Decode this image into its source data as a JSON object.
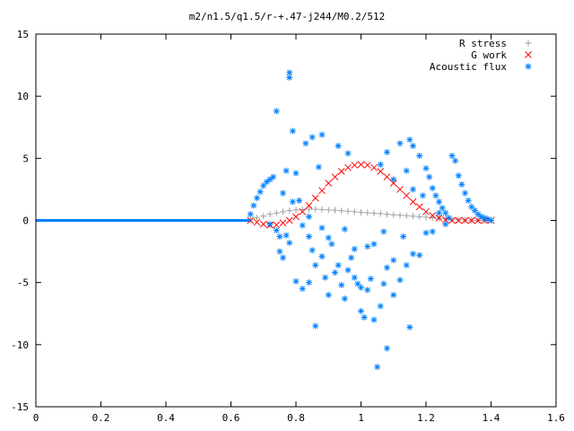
{
  "chart_data": {
    "type": "scatter",
    "title": "m2/n1.5/q1.5/r-+.47-j244/M0.2/512",
    "xlabel": "",
    "ylabel": "",
    "xlim": [
      0,
      1.6
    ],
    "ylim": [
      -15,
      15
    ],
    "x_ticks": [
      "0",
      "0.2",
      "0.4",
      "0.6",
      "0.8",
      "1",
      "1.2",
      "1.4",
      "1.6"
    ],
    "y_ticks": [
      "15",
      "10",
      "5",
      "0",
      "-5",
      "-10",
      "-15"
    ],
    "legend_position": "top-right",
    "series": [
      {
        "name": "R stress",
        "marker": "plus",
        "color": "#a0a0a0",
        "points": [
          [
            0.66,
            0.05
          ],
          [
            0.68,
            0.2
          ],
          [
            0.7,
            0.35
          ],
          [
            0.72,
            0.5
          ],
          [
            0.74,
            0.6
          ],
          [
            0.76,
            0.7
          ],
          [
            0.78,
            0.78
          ],
          [
            0.8,
            0.84
          ],
          [
            0.82,
            0.88
          ],
          [
            0.84,
            0.9
          ],
          [
            0.86,
            0.9
          ],
          [
            0.88,
            0.88
          ],
          [
            0.9,
            0.85
          ],
          [
            0.92,
            0.82
          ],
          [
            0.94,
            0.78
          ],
          [
            0.96,
            0.74
          ],
          [
            0.98,
            0.7
          ],
          [
            1.0,
            0.66
          ],
          [
            1.02,
            0.62
          ],
          [
            1.04,
            0.58
          ],
          [
            1.06,
            0.54
          ],
          [
            1.08,
            0.5
          ],
          [
            1.1,
            0.46
          ],
          [
            1.12,
            0.42
          ],
          [
            1.14,
            0.38
          ],
          [
            1.16,
            0.34
          ],
          [
            1.18,
            0.3
          ],
          [
            1.2,
            0.26
          ],
          [
            1.22,
            0.22
          ],
          [
            1.24,
            0.18
          ],
          [
            1.26,
            0.14
          ],
          [
            1.28,
            0.1
          ],
          [
            1.3,
            0.06
          ],
          [
            1.32,
            0.03
          ],
          [
            1.34,
            0.01
          ],
          [
            1.36,
            0.0
          ],
          [
            1.38,
            0.0
          ],
          [
            1.4,
            0.0
          ]
        ]
      },
      {
        "name": "G work",
        "marker": "cross",
        "color": "#ff0000",
        "points": [
          [
            0.66,
            0.0
          ],
          [
            0.68,
            -0.15
          ],
          [
            0.7,
            -0.3
          ],
          [
            0.72,
            -0.38
          ],
          [
            0.74,
            -0.35
          ],
          [
            0.76,
            -0.2
          ],
          [
            0.78,
            0.0
          ],
          [
            0.8,
            0.3
          ],
          [
            0.82,
            0.7
          ],
          [
            0.84,
            1.2
          ],
          [
            0.86,
            1.8
          ],
          [
            0.88,
            2.4
          ],
          [
            0.9,
            3.0
          ],
          [
            0.92,
            3.5
          ],
          [
            0.94,
            3.95
          ],
          [
            0.96,
            4.25
          ],
          [
            0.98,
            4.45
          ],
          [
            1.0,
            4.5
          ],
          [
            1.02,
            4.45
          ],
          [
            1.04,
            4.25
          ],
          [
            1.06,
            3.95
          ],
          [
            1.08,
            3.5
          ],
          [
            1.1,
            3.0
          ],
          [
            1.12,
            2.5
          ],
          [
            1.14,
            2.0
          ],
          [
            1.16,
            1.5
          ],
          [
            1.18,
            1.1
          ],
          [
            1.2,
            0.7
          ],
          [
            1.22,
            0.4
          ],
          [
            1.24,
            0.2
          ],
          [
            1.26,
            0.05
          ],
          [
            1.28,
            0.0
          ],
          [
            1.3,
            0.0
          ],
          [
            1.32,
            0.0
          ],
          [
            1.34,
            0.0
          ],
          [
            1.36,
            0.0
          ],
          [
            1.38,
            0.0
          ],
          [
            1.4,
            0.0
          ]
        ]
      },
      {
        "name": "Acoustic flux",
        "marker": "star",
        "color": "#0080ff",
        "points": [
          [
            0.66,
            0.5
          ],
          [
            0.67,
            1.2
          ],
          [
            0.68,
            1.8
          ],
          [
            0.69,
            2.3
          ],
          [
            0.7,
            2.8
          ],
          [
            0.71,
            3.1
          ],
          [
            0.72,
            3.3
          ],
          [
            0.73,
            3.5
          ],
          [
            0.72,
            -0.3
          ],
          [
            0.74,
            -0.8
          ],
          [
            0.75,
            -2.5
          ],
          [
            0.76,
            -3.0
          ],
          [
            0.77,
            -1.2
          ],
          [
            0.78,
            -1.8
          ],
          [
            0.75,
            -1.3
          ],
          [
            0.76,
            2.2
          ],
          [
            0.77,
            4.0
          ],
          [
            0.79,
            7.2
          ],
          [
            0.74,
            8.8
          ],
          [
            0.78,
            11.5
          ],
          [
            0.78,
            11.9
          ],
          [
            0.8,
            3.8
          ],
          [
            0.81,
            1.6
          ],
          [
            0.82,
            -0.4
          ],
          [
            0.8,
            -4.9
          ],
          [
            0.82,
            -5.5
          ],
          [
            0.84,
            -5.0
          ],
          [
            0.84,
            -1.3
          ],
          [
            0.85,
            -2.4
          ],
          [
            0.86,
            -3.6
          ],
          [
            0.86,
            -8.5
          ],
          [
            0.87,
            4.3
          ],
          [
            0.88,
            -0.6
          ],
          [
            0.88,
            -2.9
          ],
          [
            0.89,
            -4.6
          ],
          [
            0.9,
            -6.0
          ],
          [
            0.9,
            -1.4
          ],
          [
            0.92,
            -4.2
          ],
          [
            0.93,
            -3.6
          ],
          [
            0.94,
            -5.2
          ],
          [
            0.95,
            -6.3
          ],
          [
            0.96,
            -4.0
          ],
          [
            0.97,
            -3.0
          ],
          [
            0.98,
            -4.6
          ],
          [
            0.99,
            -5.1
          ],
          [
            1.0,
            -5.4
          ],
          [
            1.0,
            -7.3
          ],
          [
            1.01,
            -7.8
          ],
          [
            1.02,
            -2.1
          ],
          [
            1.02,
            -5.6
          ],
          [
            1.03,
            -4.7
          ],
          [
            1.04,
            -8.0
          ],
          [
            1.05,
            -11.8
          ],
          [
            1.06,
            -6.9
          ],
          [
            1.07,
            -5.1
          ],
          [
            1.08,
            -3.8
          ],
          [
            1.08,
            -10.3
          ],
          [
            1.1,
            -3.2
          ],
          [
            1.1,
            -6.0
          ],
          [
            1.12,
            -4.8
          ],
          [
            1.13,
            -1.3
          ],
          [
            1.14,
            -3.6
          ],
          [
            1.15,
            -8.6
          ],
          [
            1.16,
            -2.7
          ],
          [
            1.15,
            6.5
          ],
          [
            1.16,
            6.0
          ],
          [
            1.18,
            5.2
          ],
          [
            1.2,
            4.2
          ],
          [
            1.21,
            3.5
          ],
          [
            1.22,
            2.6
          ],
          [
            1.23,
            2.0
          ],
          [
            1.24,
            1.5
          ],
          [
            1.25,
            1.0
          ],
          [
            1.26,
            0.6
          ],
          [
            1.27,
            0.2
          ],
          [
            1.28,
            5.2
          ],
          [
            1.29,
            4.8
          ],
          [
            1.3,
            3.6
          ],
          [
            1.31,
            2.9
          ],
          [
            1.32,
            2.2
          ],
          [
            1.33,
            1.6
          ],
          [
            1.34,
            1.1
          ],
          [
            1.35,
            0.8
          ],
          [
            1.36,
            0.5
          ],
          [
            1.37,
            0.3
          ],
          [
            1.38,
            0.2
          ],
          [
            1.39,
            0.1
          ],
          [
            1.4,
            0.0
          ],
          [
            1.18,
            -2.8
          ],
          [
            1.2,
            -1.0
          ],
          [
            1.22,
            -0.9
          ],
          [
            0.83,
            6.2
          ],
          [
            0.85,
            6.7
          ],
          [
            0.88,
            6.9
          ],
          [
            0.93,
            6.0
          ],
          [
            0.96,
            5.4
          ],
          [
            1.08,
            5.5
          ],
          [
            1.12,
            6.2
          ],
          [
            1.06,
            4.5
          ],
          [
            1.1,
            3.3
          ],
          [
            1.14,
            4.0
          ],
          [
            1.16,
            2.5
          ],
          [
            1.19,
            2.0
          ],
          [
            1.24,
            0.6
          ],
          [
            1.26,
            -0.3
          ],
          [
            0.95,
            -0.7
          ],
          [
            0.98,
            -2.3
          ],
          [
            1.04,
            -1.9
          ],
          [
            1.07,
            -0.9
          ],
          [
            0.91,
            -1.9
          ],
          [
            0.79,
            1.5
          ],
          [
            0.84,
            0.3
          ]
        ]
      }
    ]
  }
}
